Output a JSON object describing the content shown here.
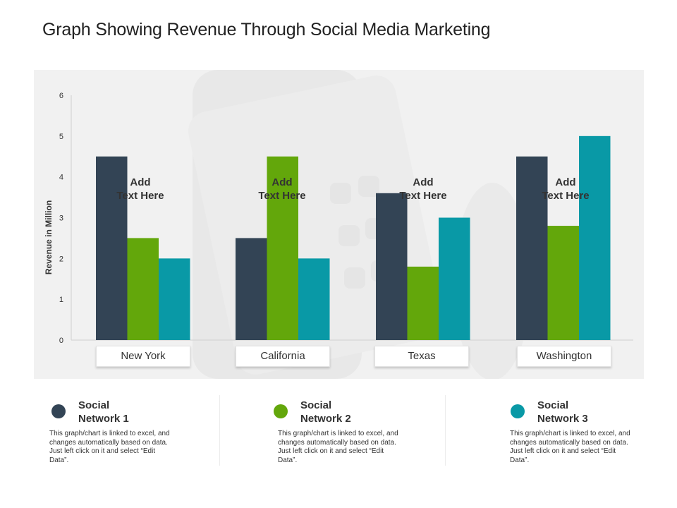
{
  "title": "Graph Showing Revenue Through Social Media Marketing",
  "colors": {
    "series1": "#334455",
    "series2": "#63a70b",
    "series3": "#0999a6"
  },
  "annotations": [
    {
      "line1": "Add",
      "line2": "Text Here"
    },
    {
      "line1": "Add",
      "line2": "Text Here"
    },
    {
      "line1": "Add",
      "line2": "Text Here"
    },
    {
      "line1": "Add",
      "line2": "Text Here"
    }
  ],
  "legend": [
    {
      "line1": "Social",
      "line2": "Network 1",
      "desc": "This graph/chart is linked to excel, and changes automatically based on data. Just left click on it and select “Edit Data”."
    },
    {
      "line1": "Social",
      "line2": "Network 2",
      "desc": "This graph/chart is linked to excel, and changes automatically based on data. Just left click on it and select “Edit Data”."
    },
    {
      "line1": "Social",
      "line2": "Network 3",
      "desc": "This graph/chart is linked to excel, and changes automatically based on data. Just left click on it and select “Edit Data”."
    }
  ],
  "chart_data": {
    "type": "bar",
    "title": "",
    "xlabel": "",
    "ylabel": "Revenue in Million",
    "ylim": [
      0,
      6
    ],
    "yticks": [
      0,
      1,
      2,
      3,
      4,
      5,
      6
    ],
    "categories": [
      "New York",
      "California",
      "Texas",
      "Washington"
    ],
    "series": [
      {
        "name": "Social Network 1",
        "values": [
          4.5,
          2.5,
          3.6,
          4.5
        ]
      },
      {
        "name": "Social Network 2",
        "values": [
          2.5,
          4.5,
          1.8,
          2.8
        ]
      },
      {
        "name": "Social Network 3",
        "values": [
          2.0,
          2.0,
          3.0,
          5.0
        ]
      }
    ],
    "grid": false,
    "legend_position": "bottom"
  }
}
